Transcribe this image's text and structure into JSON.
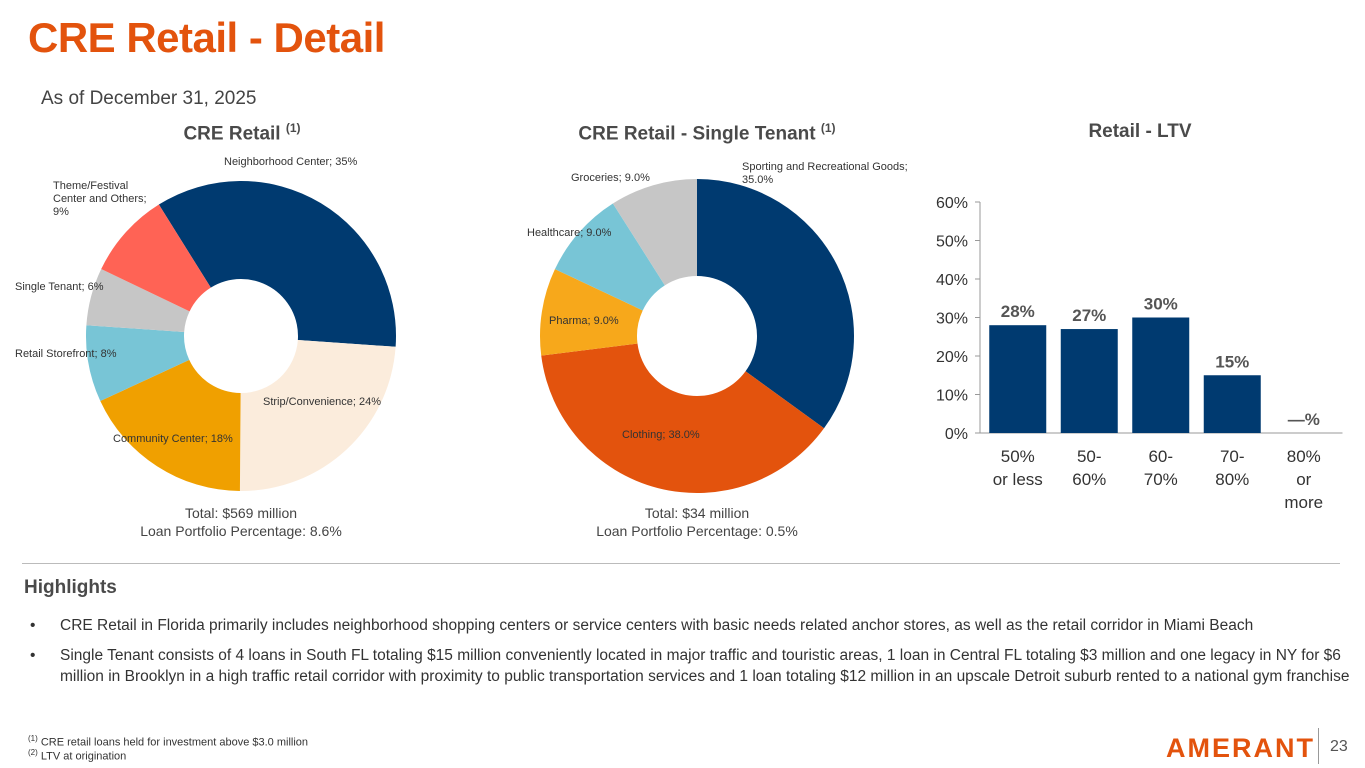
{
  "title": "CRE Retail - Detail",
  "as_of": "As of December 31, 2025",
  "chart_data": [
    {
      "type": "pie",
      "title": "CRE Retail",
      "title_note": "(1)",
      "donut": true,
      "slices": [
        {
          "label": "Neighborhood Center; 35%",
          "value": 35,
          "color": "#003a70"
        },
        {
          "label": "Strip/Convenience; 24%",
          "value": 24,
          "color": "#fbecdc"
        },
        {
          "label": "Community Center; 18%",
          "value": 18,
          "color": "#f0a000"
        },
        {
          "label": "Retail Storefront; 8%",
          "value": 8,
          "color": "#78c5d6"
        },
        {
          "label": "Single Tenant; 6%",
          "value": 6,
          "color": "#c6c6c6"
        },
        {
          "label": "Theme/Festival Center and Others; 9%",
          "value": 9,
          "color": "#ff6355"
        }
      ],
      "total": "Total: $569 million",
      "portfolio": "Loan Portfolio Percentage: 8.6%"
    },
    {
      "type": "pie",
      "title": "CRE Retail - Single Tenant",
      "title_note": "(1)",
      "donut": true,
      "slices": [
        {
          "label": "Sporting and Recreational Goods; 35.0%",
          "value": 35,
          "color": "#003a70"
        },
        {
          "label": "Clothing; 38.0%",
          "value": 38,
          "color": "#e3530d"
        },
        {
          "label": "Pharma; 9.0%",
          "value": 9,
          "color": "#f7a81b"
        },
        {
          "label": "Healthcare; 9.0%",
          "value": 9,
          "color": "#78c5d6"
        },
        {
          "label": "Groceries; 9.0%",
          "value": 9,
          "color": "#c6c6c6"
        }
      ],
      "total": "Total:  $34 million",
      "portfolio": "Loan Portfolio Percentage: 0.5%"
    },
    {
      "type": "bar",
      "title": "Retail - LTV",
      "categories": [
        "50% or less",
        "50-60%",
        "60-70%",
        "70-80%",
        "80% or more"
      ],
      "category_lines": [
        [
          "50%",
          "or less"
        ],
        [
          "50-",
          "60%"
        ],
        [
          "60-",
          "70%"
        ],
        [
          "70-",
          "80%"
        ],
        [
          "80%",
          "or",
          "more"
        ]
      ],
      "values": [
        28,
        27,
        30,
        15,
        0
      ],
      "data_labels": [
        "28%",
        "27%",
        "30%",
        "15%",
        "—%"
      ],
      "ylim": [
        0,
        60
      ],
      "yticks": [
        "0%",
        "10%",
        "20%",
        "30%",
        "40%",
        "50%",
        "60%"
      ],
      "color": "#003a70",
      "grid": false
    }
  ],
  "highlights": {
    "title": "Highlights",
    "bullet": "•",
    "items": [
      "CRE Retail in Florida primarily includes neighborhood shopping centers or service centers with basic needs related anchor stores, as well as the retail corridor in Miami Beach",
      "Single Tenant consists of 4 loans in South FL totaling $15 million conveniently located in major traffic and touristic areas, 1 loan in Central FL totaling $3 million and one legacy in NY for $6 million in Brooklyn in a high traffic retail corridor with proximity to public transportation services and 1 loan totaling $12 million in an upscale Detroit suburb rented to a national gym franchise"
    ]
  },
  "footnotes": [
    {
      "mark": "(1)",
      "text": "CRE retail loans held for investment above $3.0 million"
    },
    {
      "mark": "(2)",
      "text": "LTV at origination"
    }
  ],
  "logo": "AMERANT",
  "page_number": "23"
}
